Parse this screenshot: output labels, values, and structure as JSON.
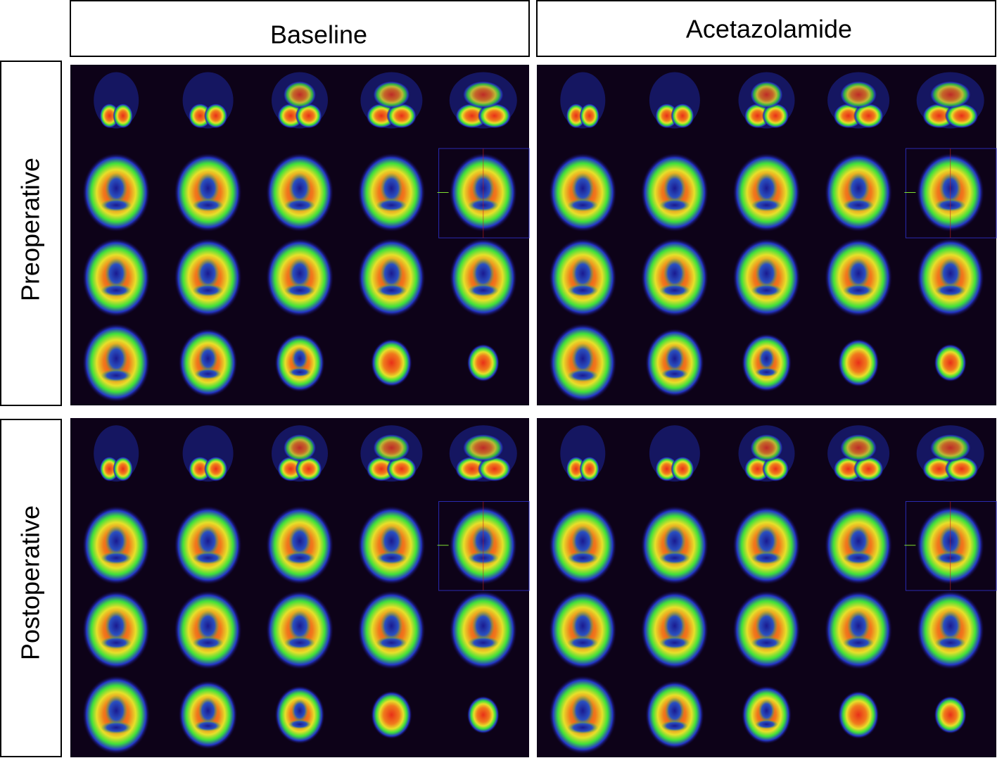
{
  "columns": [
    "Baseline",
    "Acetazolamide"
  ],
  "rows": [
    "Preoperative",
    "Postoperative"
  ]
}
